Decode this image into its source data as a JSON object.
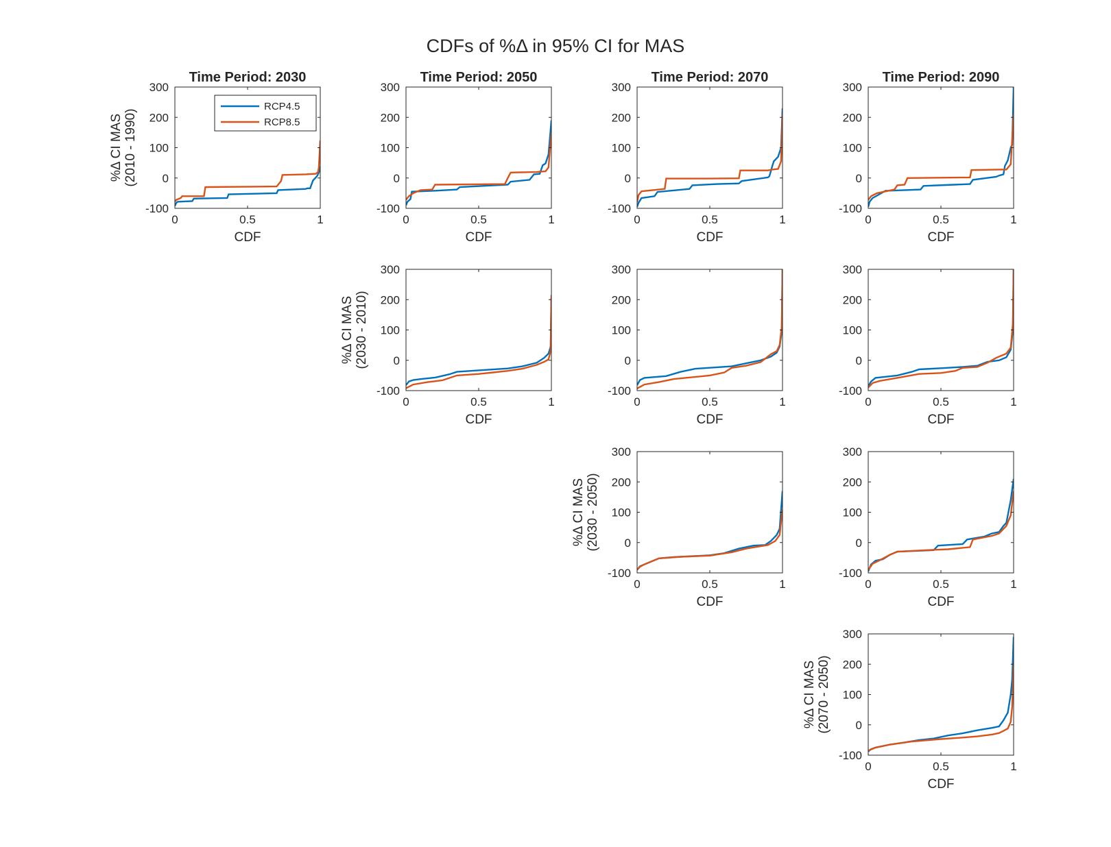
{
  "figure": {
    "suptitle": "CDFs of %Δ in 95% CI for MAS",
    "colors": {
      "RCP4.5": "#0072BD",
      "RCP8.5": "#D95319"
    },
    "legend": {
      "entries": [
        "RCP4.5",
        "RCP8.5"
      ],
      "location": "top-right of first panel"
    }
  },
  "chart_data": [
    {
      "type": "line",
      "title": "Time Period: 2030",
      "xlabel": "CDF",
      "ylabel": [
        "%Δ CI MAS",
        "(2010 - 1990)"
      ],
      "xlim": [
        0,
        1
      ],
      "ylim": [
        -100,
        300
      ],
      "xticks": [
        "0",
        "0.5",
        "1"
      ],
      "yticks": [
        "-100",
        "0",
        "100",
        "200",
        "300"
      ],
      "grid": false,
      "legend": true,
      "series": [
        {
          "name": "RCP4.5",
          "x": [
            0,
            0.01,
            0.02,
            0.03,
            0.12,
            0.13,
            0.36,
            0.37,
            0.7,
            0.71,
            0.9,
            0.91,
            0.93,
            0.95,
            0.97,
            0.98,
            0.99,
            1.0
          ],
          "y": [
            -92,
            -82,
            -78,
            -78,
            -76,
            -68,
            -66,
            -54,
            -50,
            -40,
            -36,
            -34,
            -34,
            -8,
            2,
            8,
            18,
            38
          ]
        },
        {
          "name": "RCP8.5",
          "x": [
            0,
            0.01,
            0.04,
            0.05,
            0.2,
            0.21,
            0.7,
            0.71,
            0.73,
            0.74,
            0.9,
            0.93,
            0.97,
            0.985,
            0.99,
            1.0
          ],
          "y": [
            -78,
            -72,
            -66,
            -60,
            -60,
            -30,
            -28,
            -22,
            -10,
            10,
            12,
            13,
            14,
            20,
            35,
            124
          ]
        }
      ]
    },
    {
      "type": "line",
      "title": "Time Period: 2050",
      "xlabel": "CDF",
      "ylabel": [],
      "xlim": [
        0,
        1
      ],
      "ylim": [
        -100,
        300
      ],
      "xticks": [
        "0",
        "0.5",
        "1"
      ],
      "yticks": [
        "-100",
        "0",
        "100",
        "200",
        "300"
      ],
      "grid": false,
      "legend": false,
      "series": [
        {
          "name": "RCP4.5",
          "x": [
            0,
            0.01,
            0.03,
            0.04,
            0.2,
            0.35,
            0.37,
            0.7,
            0.72,
            0.85,
            0.88,
            0.92,
            0.94,
            0.96,
            0.98,
            1.0
          ],
          "y": [
            -90,
            -78,
            -70,
            -45,
            -42,
            -38,
            -30,
            -22,
            -12,
            -6,
            12,
            14,
            42,
            48,
            78,
            190
          ]
        },
        {
          "name": "RCP8.5",
          "x": [
            0,
            0.02,
            0.05,
            0.1,
            0.18,
            0.2,
            0.68,
            0.7,
            0.72,
            0.9,
            0.96,
            0.98,
            1.0
          ],
          "y": [
            -72,
            -60,
            -50,
            -40,
            -38,
            -22,
            -20,
            0,
            18,
            20,
            22,
            35,
            150
          ]
        }
      ]
    },
    {
      "type": "line",
      "title": "Time Period: 2070",
      "xlabel": "CDF",
      "ylabel": [],
      "xlim": [
        0,
        1
      ],
      "ylim": [
        -100,
        300
      ],
      "xticks": [
        "0",
        "0.5",
        "1"
      ],
      "yticks": [
        "-100",
        "0",
        "100",
        "200",
        "300"
      ],
      "grid": false,
      "legend": false,
      "series": [
        {
          "name": "RCP4.5",
          "x": [
            0,
            0.01,
            0.03,
            0.12,
            0.14,
            0.36,
            0.38,
            0.55,
            0.7,
            0.72,
            0.9,
            0.91,
            0.93,
            0.94,
            0.97,
            0.99,
            1.0
          ],
          "y": [
            -95,
            -82,
            -66,
            -60,
            -46,
            -36,
            -24,
            -20,
            -18,
            -10,
            2,
            6,
            40,
            55,
            70,
            100,
            230
          ]
        },
        {
          "name": "RCP8.5",
          "x": [
            0,
            0.01,
            0.03,
            0.19,
            0.2,
            0.22,
            0.5,
            0.7,
            0.71,
            0.9,
            0.93,
            0.97,
            0.99,
            1.0
          ],
          "y": [
            -80,
            -56,
            -44,
            -36,
            -2,
            -2,
            -2,
            -1,
            25,
            25,
            28,
            30,
            55,
            210
          ]
        }
      ]
    },
    {
      "type": "line",
      "title": "Time Period: 2090",
      "xlabel": "CDF",
      "ylabel": [],
      "xlim": [
        0,
        1
      ],
      "ylim": [
        -100,
        300
      ],
      "xticks": [
        "0",
        "0.5",
        "1"
      ],
      "yticks": [
        "-100",
        "0",
        "100",
        "200",
        "300"
      ],
      "grid": false,
      "legend": false,
      "series": [
        {
          "name": "RCP4.5",
          "x": [
            0,
            0.01,
            0.03,
            0.12,
            0.14,
            0.36,
            0.38,
            0.7,
            0.72,
            0.88,
            0.9,
            0.93,
            0.94,
            0.96,
            0.98,
            0.99,
            1.0
          ],
          "y": [
            -95,
            -78,
            -66,
            -42,
            -42,
            -38,
            -26,
            -20,
            -6,
            4,
            8,
            12,
            40,
            58,
            100,
            110,
            300
          ]
        },
        {
          "name": "RCP8.5",
          "x": [
            0,
            0.02,
            0.06,
            0.18,
            0.2,
            0.25,
            0.27,
            0.7,
            0.71,
            0.9,
            0.95,
            0.98,
            1.0
          ],
          "y": [
            -72,
            -60,
            -50,
            -38,
            -24,
            -22,
            0,
            2,
            26,
            28,
            28,
            45,
            210
          ]
        }
      ]
    },
    {
      "type": "line",
      "title": "",
      "xlabel": "CDF",
      "ylabel": [
        "%Δ CI MAS",
        "(2030 - 2010)"
      ],
      "xlim": [
        0,
        1
      ],
      "ylim": [
        -100,
        300
      ],
      "xticks": [
        "0",
        "0.5",
        "1"
      ],
      "yticks": [
        "-100",
        "0",
        "100",
        "200",
        "300"
      ],
      "grid": false,
      "legend": false,
      "series": [
        {
          "name": "RCP4.5",
          "x": [
            0,
            0.02,
            0.05,
            0.1,
            0.2,
            0.3,
            0.35,
            0.5,
            0.7,
            0.8,
            0.9,
            0.95,
            0.98,
            0.995,
            1.0
          ],
          "y": [
            -82,
            -70,
            -65,
            -62,
            -57,
            -46,
            -38,
            -33,
            -27,
            -20,
            -8,
            8,
            22,
            45,
            205
          ]
        },
        {
          "name": "RCP8.5",
          "x": [
            0,
            0.05,
            0.15,
            0.25,
            0.35,
            0.5,
            0.6,
            0.7,
            0.8,
            0.9,
            0.95,
            0.98,
            0.995,
            1.0
          ],
          "y": [
            -92,
            -80,
            -72,
            -66,
            -50,
            -45,
            -40,
            -35,
            -28,
            -15,
            -5,
            3,
            30,
            215
          ]
        }
      ]
    },
    {
      "type": "line",
      "title": "",
      "xlabel": "CDF",
      "ylabel": [],
      "xlim": [
        0,
        1
      ],
      "ylim": [
        -100,
        300
      ],
      "xticks": [
        "0",
        "0.5",
        "1"
      ],
      "yticks": [
        "-100",
        "0",
        "100",
        "200",
        "300"
      ],
      "grid": false,
      "legend": false,
      "series": [
        {
          "name": "RCP4.5",
          "x": [
            0,
            0.02,
            0.05,
            0.2,
            0.3,
            0.4,
            0.65,
            0.75,
            0.85,
            0.92,
            0.96,
            0.98,
            0.995,
            1.0
          ],
          "y": [
            -82,
            -65,
            -58,
            -52,
            -38,
            -28,
            -20,
            -10,
            0,
            12,
            25,
            45,
            95,
            300
          ]
        },
        {
          "name": "RCP8.5",
          "x": [
            0,
            0.05,
            0.15,
            0.25,
            0.5,
            0.6,
            0.65,
            0.75,
            0.85,
            0.92,
            0.96,
            0.98,
            0.995,
            1.0
          ],
          "y": [
            -93,
            -80,
            -72,
            -62,
            -50,
            -40,
            -25,
            -18,
            -6,
            20,
            30,
            50,
            110,
            300
          ]
        }
      ]
    },
    {
      "type": "line",
      "title": "",
      "xlabel": "CDF",
      "ylabel": [],
      "xlim": [
        0,
        1
      ],
      "ylim": [
        -100,
        300
      ],
      "xticks": [
        "0",
        "0.5",
        "1"
      ],
      "yticks": [
        "-100",
        "0",
        "100",
        "200",
        "300"
      ],
      "grid": false,
      "legend": false,
      "series": [
        {
          "name": "RCP4.5",
          "x": [
            0,
            0.02,
            0.05,
            0.2,
            0.3,
            0.35,
            0.5,
            0.65,
            0.75,
            0.82,
            0.9,
            0.95,
            0.98,
            0.995,
            1.0
          ],
          "y": [
            -85,
            -70,
            -58,
            -50,
            -38,
            -30,
            -26,
            -22,
            -18,
            -5,
            0,
            10,
            35,
            100,
            300
          ]
        },
        {
          "name": "RCP8.5",
          "x": [
            0,
            0.03,
            0.08,
            0.2,
            0.35,
            0.5,
            0.6,
            0.65,
            0.75,
            0.82,
            0.88,
            0.95,
            0.98,
            0.995,
            1.0
          ],
          "y": [
            -90,
            -75,
            -68,
            -58,
            -45,
            -42,
            -35,
            -25,
            -22,
            -8,
            8,
            22,
            42,
            120,
            300
          ]
        }
      ]
    },
    {
      "type": "line",
      "title": "",
      "xlabel": "CDF",
      "ylabel": [
        "%Δ CI MAS",
        "(2030 - 2050)"
      ],
      "xlim": [
        0,
        1
      ],
      "ylim": [
        -100,
        300
      ],
      "xticks": [
        "0",
        "0.5",
        "1"
      ],
      "yticks": [
        "-100",
        "0",
        "100",
        "200",
        "300"
      ],
      "grid": false,
      "legend": false,
      "series": [
        {
          "name": "RCP4.5",
          "x": [
            0,
            0.02,
            0.05,
            0.1,
            0.15,
            0.25,
            0.5,
            0.6,
            0.7,
            0.8,
            0.88,
            0.92,
            0.96,
            0.98,
            1.0
          ],
          "y": [
            -90,
            -78,
            -72,
            -62,
            -52,
            -48,
            -42,
            -35,
            -20,
            -10,
            -8,
            5,
            25,
            45,
            170
          ]
        },
        {
          "name": "RCP8.5",
          "x": [
            0,
            0.02,
            0.05,
            0.15,
            0.3,
            0.5,
            0.65,
            0.75,
            0.85,
            0.9,
            0.95,
            0.98,
            1.0
          ],
          "y": [
            -90,
            -80,
            -72,
            -52,
            -47,
            -43,
            -32,
            -20,
            -12,
            -8,
            5,
            25,
            110
          ]
        }
      ]
    },
    {
      "type": "line",
      "title": "",
      "xlabel": "CDF",
      "ylabel": [],
      "xlim": [
        0,
        1
      ],
      "ylim": [
        -100,
        300
      ],
      "xticks": [
        "0",
        "0.5",
        "1"
      ],
      "yticks": [
        "-100",
        "0",
        "100",
        "200",
        "300"
      ],
      "grid": false,
      "legend": false,
      "series": [
        {
          "name": "RCP4.5",
          "x": [
            0,
            0.02,
            0.05,
            0.1,
            0.15,
            0.2,
            0.45,
            0.48,
            0.65,
            0.68,
            0.8,
            0.85,
            0.9,
            0.93,
            0.95,
            0.98,
            1.0
          ],
          "y": [
            -95,
            -72,
            -60,
            -55,
            -40,
            -30,
            -25,
            -10,
            -5,
            10,
            20,
            30,
            35,
            55,
            65,
            140,
            210
          ]
        },
        {
          "name": "RCP8.5",
          "x": [
            0,
            0.03,
            0.08,
            0.15,
            0.2,
            0.4,
            0.55,
            0.7,
            0.72,
            0.85,
            0.9,
            0.95,
            0.98,
            1.0
          ],
          "y": [
            -90,
            -70,
            -58,
            -40,
            -30,
            -25,
            -22,
            -15,
            10,
            22,
            30,
            55,
            90,
            170
          ]
        }
      ]
    },
    {
      "type": "line",
      "title": "",
      "xlabel": "CDF",
      "ylabel": [
        "%Δ CI MAS",
        "(2070 - 2050)"
      ],
      "xlim": [
        0,
        1
      ],
      "ylim": [
        -100,
        300
      ],
      "xticks": [
        "0",
        "0.5",
        "1"
      ],
      "yticks": [
        "-100",
        "0",
        "100",
        "200",
        "300"
      ],
      "grid": false,
      "legend": false,
      "series": [
        {
          "name": "RCP4.5",
          "x": [
            0,
            0.02,
            0.05,
            0.15,
            0.25,
            0.35,
            0.45,
            0.55,
            0.65,
            0.75,
            0.85,
            0.9,
            0.93,
            0.96,
            0.98,
            0.99,
            1.0
          ],
          "y": [
            -88,
            -80,
            -75,
            -65,
            -58,
            -50,
            -45,
            -35,
            -28,
            -18,
            -10,
            -5,
            15,
            40,
            100,
            150,
            290
          ]
        },
        {
          "name": "RCP8.5",
          "x": [
            0,
            0.05,
            0.15,
            0.3,
            0.5,
            0.65,
            0.75,
            0.85,
            0.9,
            0.93,
            0.96,
            0.98,
            0.99,
            1.0
          ],
          "y": [
            -85,
            -75,
            -65,
            -55,
            -47,
            -42,
            -38,
            -32,
            -27,
            -20,
            -12,
            10,
            60,
            200
          ]
        }
      ]
    }
  ]
}
